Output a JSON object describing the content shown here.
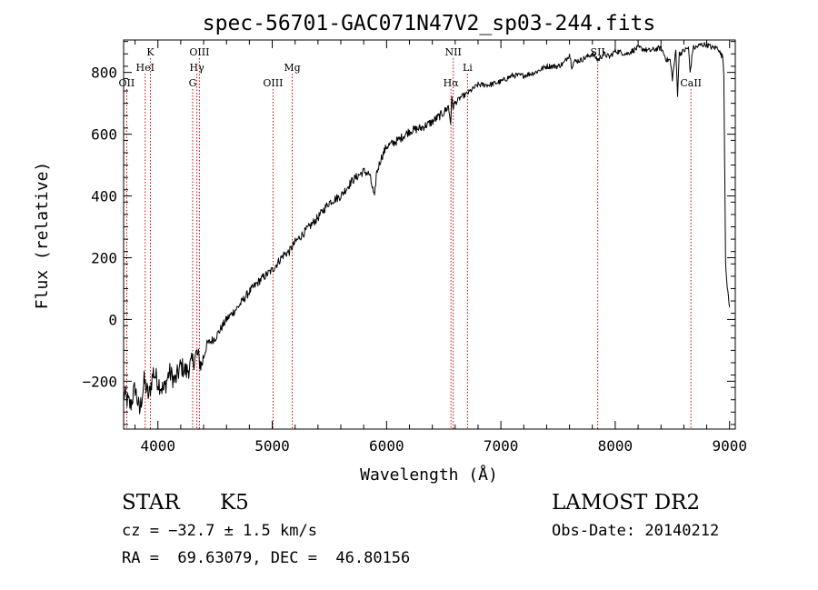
{
  "chart_data": {
    "type": "line",
    "title": "spec-56701-GAC071N47V2_sp03-244.fits",
    "xlabel": "Wavelength (Å)",
    "ylabel": "Flux (relative)",
    "xlim": [
      3700,
      9050
    ],
    "ylim": [
      -355,
      905
    ],
    "x_ticks": [
      4000,
      5000,
      6000,
      7000,
      8000,
      9000
    ],
    "x_tick_labels": [
      "4000",
      "5000",
      "6000",
      "7000",
      "8000",
      "9000"
    ],
    "y_ticks": [
      -200,
      0,
      200,
      400,
      600,
      800
    ],
    "y_tick_labels": [
      "−200",
      "0",
      "200",
      "400",
      "600",
      "800"
    ],
    "grid": false,
    "series": [
      {
        "color": "#000000",
        "x": [
          3700,
          3760,
          3800,
          3840,
          3880,
          3920,
          3960,
          4000,
          4050,
          4100,
          4150,
          4200,
          4250,
          4300,
          4340,
          4380,
          4430,
          4500,
          4600,
          4700,
          4800,
          4900,
          5000,
          5100,
          5150,
          5200,
          5300,
          5400,
          5500,
          5600,
          5700,
          5800,
          5850,
          5880,
          5895,
          5910,
          5950,
          6000,
          6100,
          6200,
          6300,
          6400,
          6500,
          6540,
          6560,
          6570,
          6580,
          6600,
          6650,
          6700,
          6800,
          6900,
          7000,
          7100,
          7200,
          7300,
          7400,
          7500,
          7550,
          7600,
          7620,
          7640,
          7700,
          7800,
          7850,
          7900,
          7950,
          8000,
          8100,
          8200,
          8300,
          8400,
          8450,
          8480,
          8500,
          8530,
          8545,
          8560,
          8600,
          8640,
          8655,
          8665,
          8680,
          8700,
          8750,
          8800,
          8850,
          8900,
          8920,
          8940,
          8950,
          8965,
          8980,
          9000
        ],
        "y": [
          -240,
          -280,
          -220,
          -300,
          -200,
          -250,
          -170,
          -200,
          -230,
          -170,
          -200,
          -150,
          -170,
          -140,
          -110,
          -150,
          -80,
          -60,
          0,
          40,
          90,
          130,
          160,
          210,
          220,
          250,
          290,
          330,
          380,
          400,
          450,
          480,
          470,
          420,
          390,
          470,
          520,
          560,
          580,
          610,
          620,
          640,
          670,
          690,
          640,
          710,
          690,
          700,
          720,
          730,
          760,
          760,
          770,
          790,
          790,
          800,
          820,
          820,
          830,
          860,
          820,
          835,
          840,
          860,
          840,
          860,
          850,
          870,
          860,
          880,
          870,
          880,
          840,
          840,
          780,
          870,
          730,
          860,
          870,
          880,
          800,
          830,
          880,
          880,
          890,
          890,
          880,
          880,
          860,
          850,
          800,
          190,
          100,
          40
        ]
      }
    ],
    "line_markers": [
      {
        "label": "OII",
        "x": 3727,
        "row": 3
      },
      {
        "label": "K",
        "x": 3934,
        "row": 1
      },
      {
        "label": "HeI",
        "x": 3889,
        "row": 2
      },
      {
        "label": "OIII",
        "x": 4363,
        "row": 1
      },
      {
        "label": "Hγ",
        "x": 4341,
        "row": 2
      },
      {
        "label": "G",
        "x": 4304,
        "row": 3
      },
      {
        "label": "OIII",
        "x": 5007,
        "row": 3
      },
      {
        "label": "Mg",
        "x": 5175,
        "row": 2
      },
      {
        "label": "NII",
        "x": 6583,
        "row": 1
      },
      {
        "label": "Li",
        "x": 6708,
        "row": 2
      },
      {
        "label": "Hα",
        "x": 6563,
        "row": 3
      },
      {
        "label": "SII",
        "x": 7847,
        "row": 1
      },
      {
        "label": "CaII",
        "x": 8662,
        "row": 3
      }
    ],
    "marker_color": "#cc0000"
  },
  "info": {
    "object_type": "STAR",
    "subclass": "K5",
    "survey": "LAMOST DR2",
    "cz": "cz = −32.7 ± 1.5 km/s",
    "obs_date": "Obs-Date: 20140212",
    "radec": "RA =  69.63079, DEC =  46.80156"
  }
}
